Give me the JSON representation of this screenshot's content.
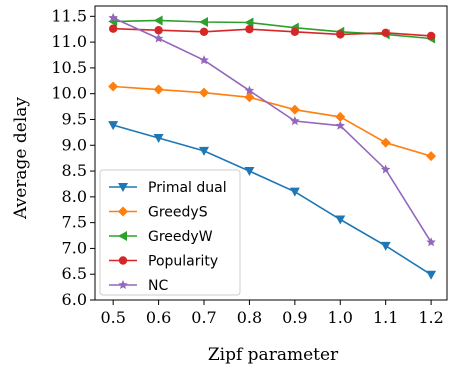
{
  "chart_data": {
    "type": "line",
    "xlabel": "Zipf parameter",
    "ylabel": "Average delay",
    "x": [
      0.5,
      0.6,
      0.7,
      0.8,
      0.9,
      1.0,
      1.1,
      1.2
    ],
    "xticks": [
      "0.5",
      "0.6",
      "0.7",
      "0.8",
      "0.9",
      "1.0",
      "1.1",
      "1.2"
    ],
    "yticks": [
      "6.0",
      "6.5",
      "7.0",
      "7.5",
      "8.0",
      "8.5",
      "9.0",
      "9.5",
      "10.0",
      "10.5",
      "11.0",
      "11.5"
    ],
    "xlim": [
      0.46,
      1.235
    ],
    "ylim": [
      6.0,
      11.7
    ],
    "grid": false,
    "legend_position": "lower-left",
    "series": [
      {
        "name": "Primal dual",
        "color": "#1f77b4",
        "marker": "triangle-down",
        "values": [
          9.39,
          9.14,
          8.89,
          8.5,
          8.1,
          7.56,
          7.05,
          6.49
        ]
      },
      {
        "name": "GreedyS",
        "color": "#ff7f0e",
        "marker": "diamond",
        "values": [
          10.14,
          10.08,
          10.02,
          9.93,
          9.69,
          9.55,
          9.05,
          8.79
        ]
      },
      {
        "name": "GreedyW",
        "color": "#2ca02c",
        "marker": "triangle-left",
        "values": [
          11.4,
          11.42,
          11.39,
          11.38,
          11.28,
          11.2,
          11.15,
          11.07
        ]
      },
      {
        "name": "Popularity",
        "color": "#d62728",
        "marker": "circle",
        "values": [
          11.26,
          11.23,
          11.2,
          11.25,
          11.2,
          11.15,
          11.18,
          11.12
        ]
      },
      {
        "name": "NC",
        "color": "#9467bd",
        "marker": "star",
        "values": [
          11.47,
          11.07,
          10.65,
          10.06,
          9.47,
          9.38,
          8.53,
          7.12
        ]
      }
    ]
  }
}
